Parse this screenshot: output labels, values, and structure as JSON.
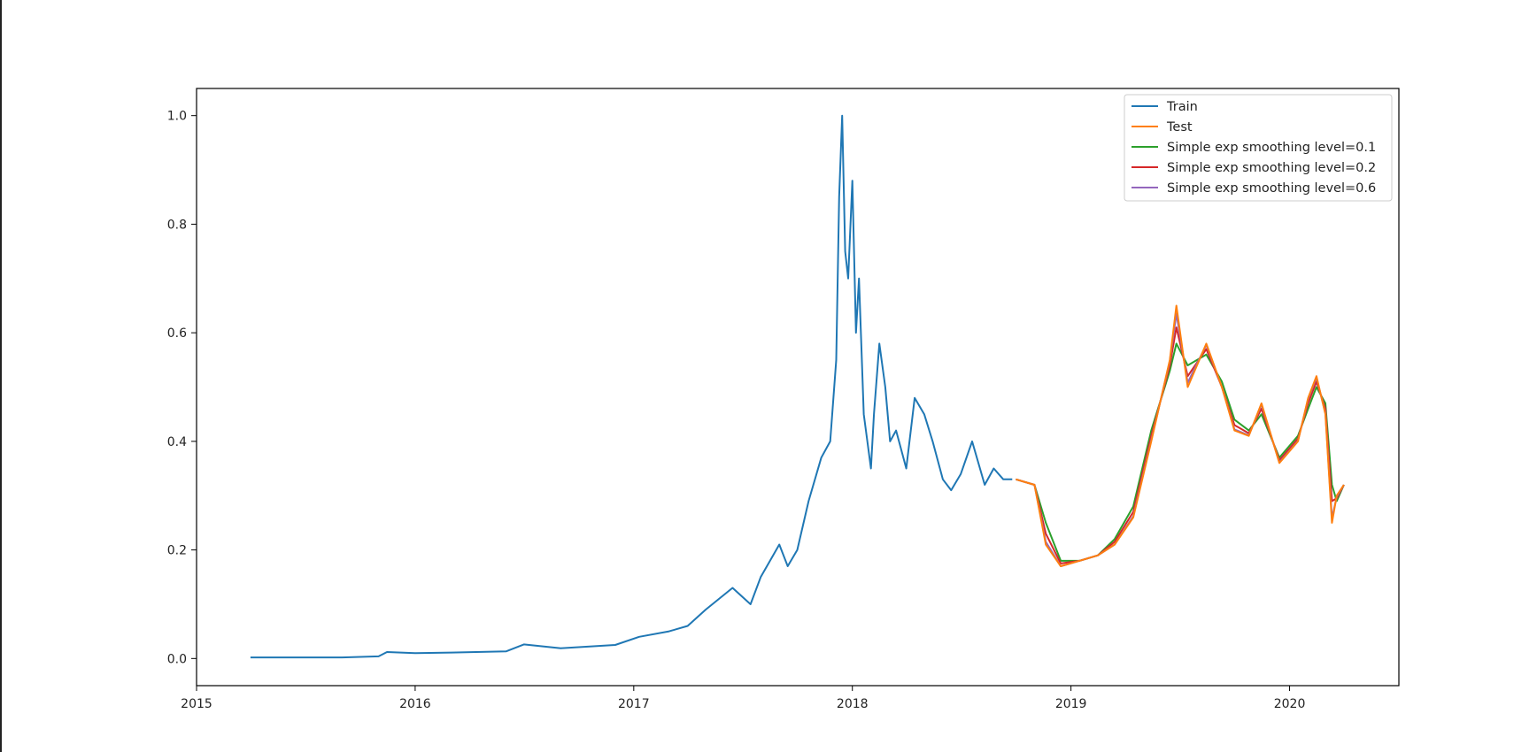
{
  "chart_data": {
    "type": "line",
    "title": "",
    "xlabel": "",
    "ylabel": "",
    "xlim": [
      2015.0,
      2020.5
    ],
    "ylim": [
      -0.05,
      1.05
    ],
    "x_ticks": [
      2015,
      2016,
      2017,
      2018,
      2019,
      2020
    ],
    "x_tick_labels": [
      "2015",
      "2016",
      "2017",
      "2018",
      "2019",
      "2020"
    ],
    "y_ticks": [
      0.0,
      0.2,
      0.4,
      0.6,
      0.8,
      1.0
    ],
    "y_tick_labels": [
      "0.0",
      "0.2",
      "0.4",
      "0.6",
      "0.8",
      "1.0"
    ],
    "grid": false,
    "legend_position": "top-right",
    "series": [
      {
        "name": "Train",
        "color": "#1f77b4",
        "x": [
          "2015-04-01",
          "2015-06-01",
          "2015-09-01",
          "2015-11-01",
          "2015-11-15",
          "2016-01-01",
          "2016-03-01",
          "2016-06-01",
          "2016-07-01",
          "2016-09-01",
          "2016-12-01",
          "2017-01-10",
          "2017-03-01",
          "2017-04-01",
          "2017-05-01",
          "2017-06-15",
          "2017-07-15",
          "2017-08-01",
          "2017-09-01",
          "2017-09-15",
          "2017-10-01",
          "2017-10-20",
          "2017-11-10",
          "2017-11-25",
          "2017-12-05",
          "2017-12-10",
          "2017-12-15",
          "2017-12-20",
          "2017-12-25",
          "2018-01-01",
          "2018-01-07",
          "2018-01-12",
          "2018-01-20",
          "2018-02-01",
          "2018-02-06",
          "2018-02-15",
          "2018-02-25",
          "2018-03-05",
          "2018-03-15",
          "2018-04-01",
          "2018-04-15",
          "2018-05-01",
          "2018-05-15",
          "2018-06-01",
          "2018-06-15",
          "2018-07-01",
          "2018-07-20",
          "2018-08-10",
          "2018-08-25",
          "2018-09-10",
          "2018-09-25"
        ],
        "y": [
          0.002,
          0.002,
          0.002,
          0.004,
          0.012,
          0.01,
          0.011,
          0.013,
          0.026,
          0.019,
          0.025,
          0.04,
          0.05,
          0.06,
          0.09,
          0.13,
          0.1,
          0.15,
          0.21,
          0.17,
          0.2,
          0.29,
          0.37,
          0.4,
          0.55,
          0.85,
          1.0,
          0.75,
          0.7,
          0.88,
          0.6,
          0.7,
          0.45,
          0.35,
          0.45,
          0.58,
          0.5,
          0.4,
          0.42,
          0.35,
          0.48,
          0.45,
          0.4,
          0.33,
          0.31,
          0.34,
          0.4,
          0.32,
          0.35,
          0.33,
          0.33
        ]
      },
      {
        "name": "Test",
        "color": "#ff7f0e",
        "x": [
          "2018-10-01",
          "2018-11-01",
          "2018-11-20",
          "2018-12-15",
          "2019-01-15",
          "2019-02-15",
          "2019-03-15",
          "2019-04-15",
          "2019-05-15",
          "2019-06-15",
          "2019-06-26",
          "2019-07-15",
          "2019-08-15",
          "2019-09-10",
          "2019-10-01",
          "2019-10-25",
          "2019-11-15",
          "2019-12-15",
          "2020-01-15",
          "2020-02-01",
          "2020-02-15",
          "2020-03-01",
          "2020-03-12",
          "2020-03-20",
          "2020-04-01"
        ],
        "y": [
          0.33,
          0.32,
          0.21,
          0.17,
          0.18,
          0.19,
          0.21,
          0.26,
          0.4,
          0.55,
          0.65,
          0.5,
          0.58,
          0.5,
          0.42,
          0.41,
          0.47,
          0.36,
          0.4,
          0.48,
          0.52,
          0.45,
          0.25,
          0.3,
          0.32
        ]
      },
      {
        "name": "Simple exp smoothing level=0.1",
        "color": "#2ca02c",
        "x": [
          "2018-10-01",
          "2018-11-01",
          "2018-11-20",
          "2018-12-15",
          "2019-01-15",
          "2019-02-15",
          "2019-03-15",
          "2019-04-15",
          "2019-05-15",
          "2019-06-15",
          "2019-06-26",
          "2019-07-15",
          "2019-08-15",
          "2019-09-10",
          "2019-10-01",
          "2019-10-25",
          "2019-11-15",
          "2019-12-15",
          "2020-01-15",
          "2020-02-01",
          "2020-02-15",
          "2020-03-01",
          "2020-03-12",
          "2020-03-20",
          "2020-04-01"
        ],
        "y": [
          0.33,
          0.32,
          0.25,
          0.18,
          0.18,
          0.19,
          0.22,
          0.28,
          0.42,
          0.53,
          0.58,
          0.54,
          0.56,
          0.51,
          0.44,
          0.42,
          0.45,
          0.37,
          0.41,
          0.46,
          0.5,
          0.47,
          0.32,
          0.29,
          0.32
        ]
      },
      {
        "name": "Simple exp smoothing level=0.2",
        "color": "#d62728",
        "x": [
          "2018-10-01",
          "2018-11-01",
          "2018-11-20",
          "2018-12-15",
          "2019-01-15",
          "2019-02-15",
          "2019-03-15",
          "2019-04-15",
          "2019-05-15",
          "2019-06-15",
          "2019-06-26",
          "2019-07-15",
          "2019-08-15",
          "2019-09-10",
          "2019-10-01",
          "2019-10-25",
          "2019-11-15",
          "2019-12-15",
          "2020-01-15",
          "2020-02-01",
          "2020-02-15",
          "2020-03-01",
          "2020-03-12",
          "2020-03-20",
          "2020-04-01"
        ],
        "y": [
          0.33,
          0.32,
          0.23,
          0.175,
          0.18,
          0.19,
          0.215,
          0.27,
          0.41,
          0.54,
          0.61,
          0.52,
          0.57,
          0.5,
          0.43,
          0.415,
          0.46,
          0.365,
          0.405,
          0.47,
          0.51,
          0.46,
          0.29,
          0.295,
          0.32
        ]
      },
      {
        "name": "Simple exp smoothing level=0.6",
        "color": "#9467bd",
        "x": [
          "2018-10-01",
          "2018-11-01",
          "2018-11-20",
          "2018-12-15",
          "2019-01-15",
          "2019-02-15",
          "2019-03-15",
          "2019-04-15",
          "2019-05-15",
          "2019-06-15",
          "2019-06-26",
          "2019-07-15",
          "2019-08-15",
          "2019-09-10",
          "2019-10-01",
          "2019-10-25",
          "2019-11-15",
          "2019-12-15",
          "2020-01-15",
          "2020-02-01",
          "2020-02-15",
          "2020-03-01",
          "2020-03-12",
          "2020-03-20",
          "2020-04-01"
        ],
        "y": [
          0.33,
          0.32,
          0.215,
          0.17,
          0.18,
          0.19,
          0.21,
          0.262,
          0.402,
          0.548,
          0.635,
          0.508,
          0.578,
          0.5,
          0.422,
          0.411,
          0.468,
          0.361,
          0.401,
          0.478,
          0.518,
          0.452,
          0.258,
          0.298,
          0.32
        ]
      }
    ]
  }
}
